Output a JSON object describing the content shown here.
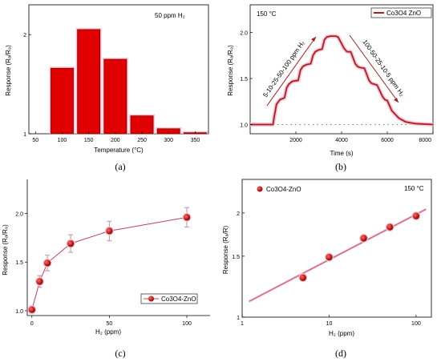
{
  "chart_data": [
    {
      "type": "bar",
      "panel_label": "(a)",
      "annotation": "50 ppm H₂",
      "xlabel": "Temperature (°C)",
      "ylabel": "Response (Rₐ/R₉)",
      "categories": [
        "100",
        "150",
        "200",
        "250",
        "300",
        "350"
      ],
      "values": [
        1.66,
        2.05,
        1.75,
        1.18,
        1.05,
        1.01
      ],
      "x_ticks": [
        "50",
        "100",
        "150",
        "200",
        "250",
        "300",
        "350"
      ],
      "y_ticks": [
        "1",
        "2"
      ],
      "ylim": [
        1,
        2.3
      ],
      "colors": {
        "bar_fill": "#e10000",
        "bar_edge": "#7a0000",
        "bar_glow": "#f4c3d6"
      }
    },
    {
      "type": "line",
      "panel_label": "(b)",
      "annotation": "150 °C",
      "legend": "Co3O4 ZnO",
      "ramp_up_label": "5-10-25-50-100 ppm H₂",
      "ramp_down_label": "100-50-25-10-5 ppm H₂",
      "xlabel": "Time (s)",
      "ylabel": "Response (Rₐ/R₉)",
      "x_ticks": [
        "2000",
        "4000",
        "6000",
        "8000"
      ],
      "y_ticks": [
        "1.0",
        "1.5",
        "2.0"
      ],
      "xlim": [
        0,
        8000
      ],
      "ylim": [
        0.9,
        2.3
      ],
      "baseline": 1.0,
      "series": [
        {
          "x": [
            0,
            1000,
            1050,
            1150,
            1300,
            1500,
            1600,
            1700,
            1850,
            2100,
            2200,
            2300,
            2450,
            2650,
            2750,
            2850,
            3000,
            3150,
            3250,
            3350,
            3500,
            3650,
            3750,
            3850,
            4100,
            4200,
            4250,
            4400,
            4600,
            4700,
            4800,
            5000,
            5200,
            5300,
            5400,
            5550,
            5800,
            5900,
            6000,
            6200,
            6500,
            6800,
            7200,
            8000
          ],
          "y": [
            1.0,
            1.0,
            1.08,
            1.22,
            1.27,
            1.29,
            1.4,
            1.44,
            1.47,
            1.48,
            1.59,
            1.63,
            1.65,
            1.66,
            1.75,
            1.79,
            1.81,
            1.82,
            1.92,
            1.95,
            1.96,
            1.96,
            1.96,
            1.95,
            1.83,
            1.8,
            1.79,
            1.79,
            1.66,
            1.63,
            1.62,
            1.61,
            1.48,
            1.45,
            1.44,
            1.43,
            1.3,
            1.27,
            1.26,
            1.15,
            1.07,
            1.03,
            1.01,
            1.0
          ]
        }
      ],
      "colors": {
        "line": "#b01c1c",
        "glow": "#f0c4d8"
      }
    },
    {
      "type": "scatter",
      "panel_label": "(c)",
      "legend": "Co3O4-ZnO",
      "xlabel": "H₂ (ppm)",
      "ylabel": "Response (Rₐ/R₉)",
      "x_ticks": [
        "0",
        "50",
        "100"
      ],
      "y_ticks": [
        "1.0",
        "1.5",
        "2.0"
      ],
      "xlim": [
        -3,
        115
      ],
      "ylim": [
        0.95,
        2.35
      ],
      "x": [
        0,
        5,
        10,
        25,
        50,
        100
      ],
      "y": [
        1.01,
        1.3,
        1.49,
        1.69,
        1.82,
        1.96
      ],
      "y_err": [
        0.04,
        0.06,
        0.08,
        0.09,
        0.1,
        0.1
      ],
      "colors": {
        "marker": "#c0231c",
        "line": "#c04060",
        "errbar": "#c8a0b8"
      }
    },
    {
      "type": "scatter",
      "panel_label": "(d)",
      "legend": "Co3O4-ZnO",
      "annotation": "150 °C",
      "xlabel": "H₂ (ppm)",
      "ylabel": "Response (Rₐ/R)",
      "scale": "log-log",
      "x_ticks": [
        "1",
        "10",
        "100"
      ],
      "y_ticks": [
        "1",
        "1.5",
        "2"
      ],
      "xlim": [
        1,
        150
      ],
      "ylim": [
        1,
        2.5
      ],
      "x": [
        5,
        10,
        25,
        50,
        100
      ],
      "y": [
        1.3,
        1.49,
        1.69,
        1.82,
        1.96
      ],
      "fit": {
        "x": [
          1.2,
          130
        ],
        "y": [
          1.11,
          2.05
        ]
      },
      "colors": {
        "marker": "#c0231c",
        "fit": "#c04060",
        "glow": "#f4c3d6"
      }
    }
  ]
}
